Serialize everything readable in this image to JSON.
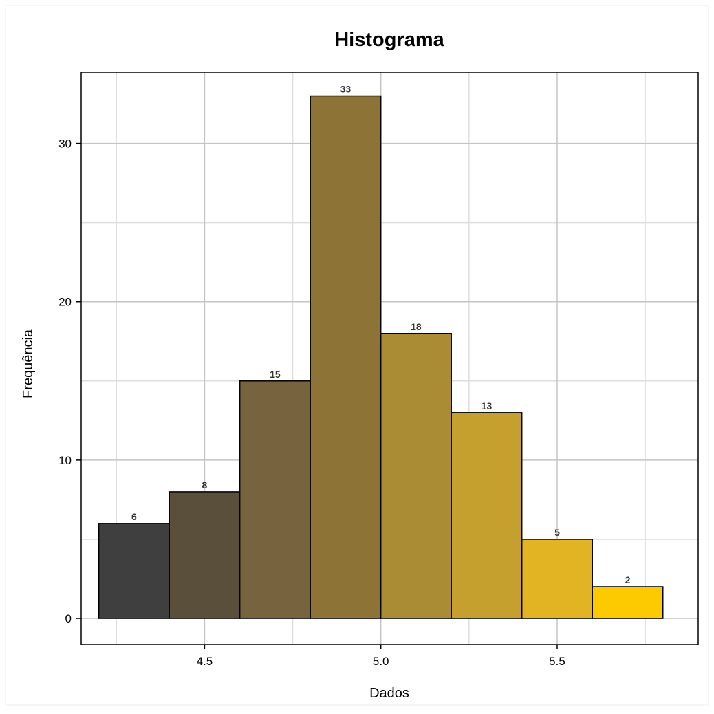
{
  "chart_data": {
    "type": "bar",
    "subtype": "histogram",
    "title": "Histograma",
    "xlabel": "Dados",
    "ylabel": "Frequência",
    "bins": [
      {
        "start": 4.2,
        "end": 4.4,
        "value": 6
      },
      {
        "start": 4.4,
        "end": 4.6,
        "value": 8
      },
      {
        "start": 4.6,
        "end": 4.8,
        "value": 15
      },
      {
        "start": 4.8,
        "end": 5.0,
        "value": 33
      },
      {
        "start": 5.0,
        "end": 5.2,
        "value": 18
      },
      {
        "start": 5.2,
        "end": 5.4,
        "value": 13
      },
      {
        "start": 5.4,
        "end": 5.6,
        "value": 5
      },
      {
        "start": 5.6,
        "end": 5.8,
        "value": 2
      }
    ],
    "bar_labels": [
      "6",
      "8",
      "15",
      "33",
      "18",
      "13",
      "5",
      "2"
    ],
    "colors": [
      "#3f3f3f",
      "#5a4f3b",
      "#77633d",
      "#8d7436",
      "#a98c34",
      "#c5a02f",
      "#e2b423",
      "#fdc900"
    ],
    "bar_outline": "#000000",
    "xlim": [
      4.15,
      5.9
    ],
    "ylim": [
      -1.65,
      34.5
    ],
    "x_ticks": [
      4.5,
      5.0,
      5.5
    ],
    "x_tick_labels": [
      "4.5",
      "5.0",
      "5.5"
    ],
    "y_ticks": [
      0,
      10,
      20,
      30
    ],
    "y_tick_labels": [
      "0",
      "10",
      "20",
      "30"
    ],
    "major_grid_x": [
      4.5,
      5.0,
      5.5
    ],
    "minor_grid_x": [
      4.25,
      4.75,
      5.25,
      5.75
    ],
    "major_grid_y": [
      0,
      10,
      20,
      30
    ],
    "minor_grid_y": [
      5,
      15,
      25
    ],
    "grid": true,
    "legend": "none"
  }
}
